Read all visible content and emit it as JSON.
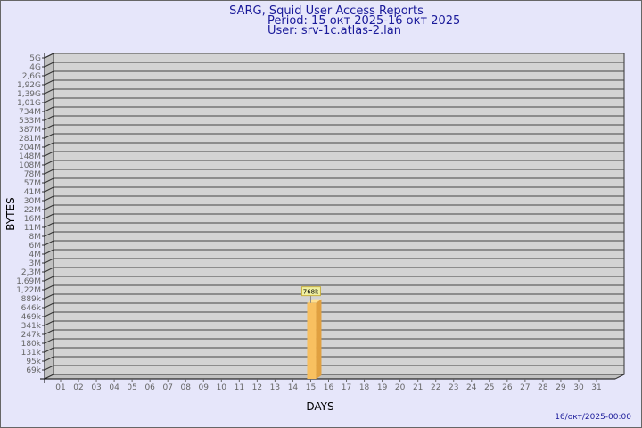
{
  "chart_data": {
    "type": "bar",
    "title": "SARG, Squid User Access Reports",
    "subtitle_period": "Period: 15 окт 2025-16 окт 2025",
    "subtitle_user": "User: srv-1c.atlas-2.lan",
    "xlabel": "DAYS",
    "ylabel": "BYTES",
    "footer": "16/окт/2025-00:00",
    "y_scale": "log",
    "y_tick_labels": [
      "5G",
      "4G",
      "2,6G",
      "1,92G",
      "1,39G",
      "1,01G",
      "734M",
      "533M",
      "387M",
      "281M",
      "204M",
      "148M",
      "108M",
      "78M",
      "57M",
      "41M",
      "30M",
      "22M",
      "16M",
      "11M",
      "8M",
      "6M",
      "4M",
      "3M",
      "2,3M",
      "1,69M",
      "1,22M",
      "889k",
      "646k",
      "469k",
      "341k",
      "247k",
      "180k",
      "131k",
      "95k",
      "69k"
    ],
    "categories": [
      "01",
      "02",
      "03",
      "04",
      "05",
      "06",
      "07",
      "08",
      "09",
      "10",
      "11",
      "12",
      "13",
      "14",
      "15",
      "16",
      "17",
      "18",
      "19",
      "20",
      "21",
      "22",
      "23",
      "24",
      "25",
      "26",
      "27",
      "28",
      "29",
      "30",
      "31"
    ],
    "bars": [
      {
        "category": "15",
        "value_label": "768k",
        "value": 768000
      }
    ],
    "grid": true,
    "colors": {
      "bar": "#f8c060",
      "bar_side": "#e0a040",
      "bar_top": "#ffe090",
      "wall": "#d3d3d3",
      "background": "#e6e6fa",
      "title": "#1a1a9a"
    }
  }
}
